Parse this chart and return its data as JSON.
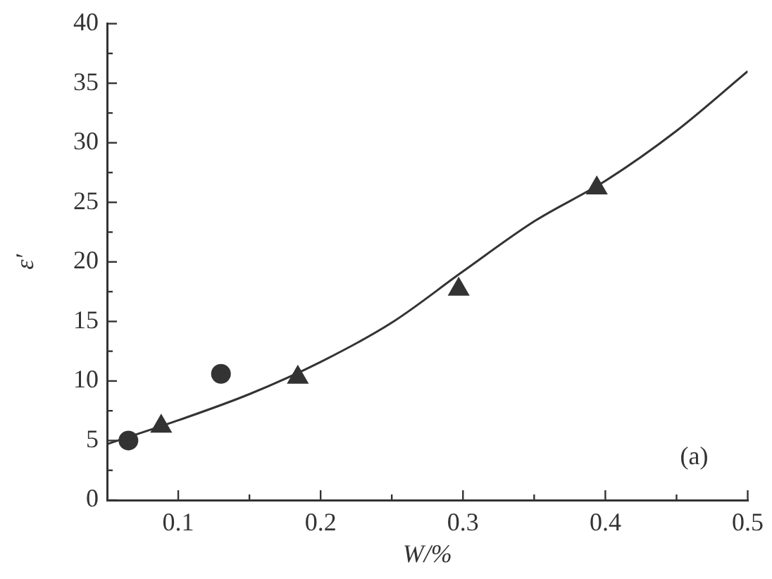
{
  "chart_data": {
    "type": "scatter",
    "xlabel": "W/%",
    "ylabel": "ε′",
    "annotations": [
      "(a)"
    ],
    "xlim": [
      0.05,
      0.5
    ],
    "ylim": [
      0,
      40
    ],
    "xticks": [
      0.1,
      {
        "value": 0.15,
        "label": null
      },
      0.2,
      {
        "value": 0.25,
        "label": null
      },
      0.3,
      {
        "value": 0.35,
        "label": null
      },
      0.4,
      {
        "value": 0.45,
        "label": null
      },
      0.5
    ],
    "yticks": [
      0,
      {
        "value": 2.5,
        "label": null
      },
      5,
      {
        "value": 7.5,
        "label": null
      },
      10,
      {
        "value": 12.5,
        "label": null
      },
      15,
      {
        "value": 17.5,
        "label": null
      },
      20,
      {
        "value": 22.5,
        "label": null
      },
      25,
      {
        "value": 27.5,
        "label": null
      },
      30,
      {
        "value": 32.5,
        "label": null
      },
      35,
      {
        "value": 37.5,
        "label": null
      },
      40
    ],
    "grid": false,
    "legend": false,
    "series": [
      {
        "marker": "circle",
        "color": "#333333",
        "x": [
          0.065,
          0.13
        ],
        "values": [
          5.0,
          10.6
        ]
      },
      {
        "marker": "triangle",
        "color": "#333333",
        "x": [
          0.088,
          0.184,
          0.297,
          0.394
        ],
        "values": [
          6.2,
          10.3,
          17.7,
          26.2
        ]
      },
      {
        "type": "line",
        "marker": "none",
        "color": "#333333",
        "x": [
          0.05,
          0.1,
          0.15,
          0.2,
          0.25,
          0.3,
          0.35,
          0.4,
          0.45,
          0.5
        ],
        "values": [
          4.7,
          6.7,
          8.9,
          11.6,
          14.9,
          19.2,
          23.4,
          26.8,
          31.0,
          36.0
        ]
      }
    ]
  }
}
